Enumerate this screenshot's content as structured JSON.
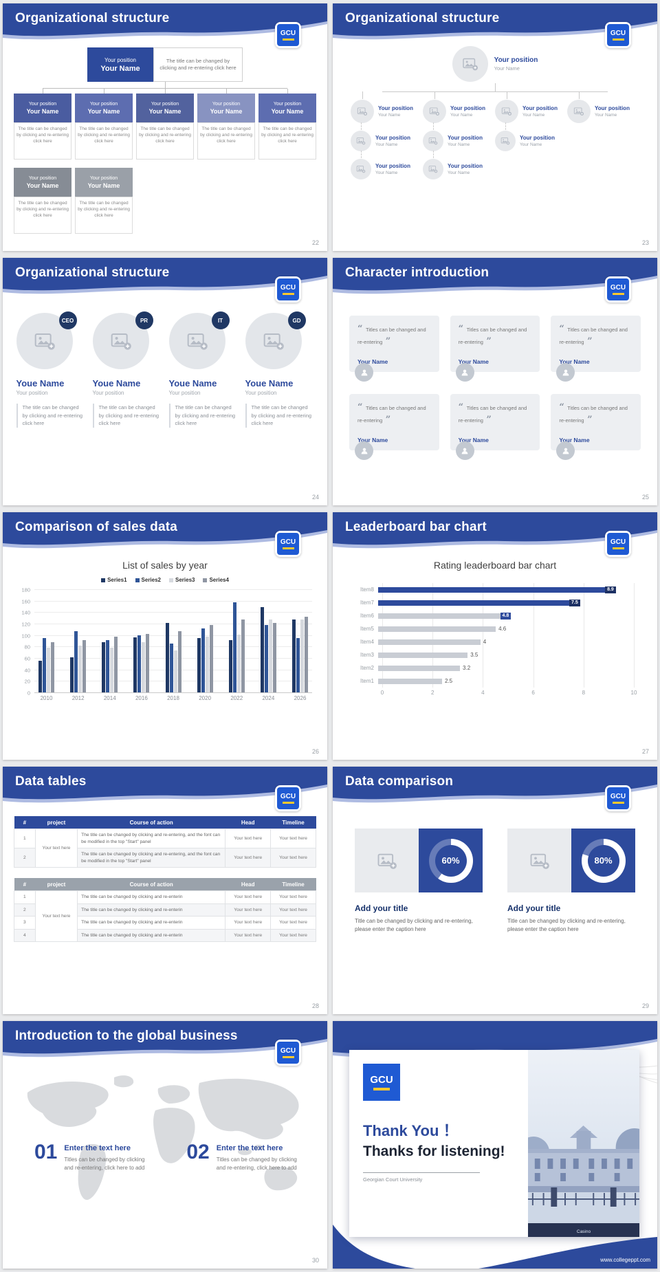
{
  "logo": {
    "text": "GCU",
    "blue": "#1f5ad3",
    "yellow": "#ffc92e"
  },
  "theme": {
    "header_blue": "#2d4a9c",
    "accent_navy": "#203864",
    "muted_gray": "#9aa2ab"
  },
  "slides": {
    "org_boxes": {
      "title": "Organizational structure",
      "page": "22",
      "root": {
        "position": "Your position",
        "name": "Your Name"
      },
      "root_desc": "The title can be changed by clicking and re-entering click here",
      "node": {
        "position": "Your position",
        "name": "Your Name"
      },
      "node_desc": "The title can be changed by clicking and re-entering click here"
    },
    "org_tree": {
      "title": "Organizational structure",
      "page": "23",
      "node": {
        "position": "Your position",
        "name": "Your Name"
      }
    },
    "org_people": {
      "title": "Organizational structure",
      "page": "24",
      "badges": [
        "CEO",
        "PR",
        "IT",
        "GD"
      ],
      "name": "Youe Name",
      "position": "Your position",
      "desc": "The title can be changed by clicking and re-entering click here"
    },
    "characters": {
      "title": "Character introduction",
      "page": "25",
      "quote": "Titles can be changed and re-entering",
      "name": "Your Name"
    },
    "sales": {
      "title": "Comparison of sales data",
      "page": "26"
    },
    "leaderboard": {
      "title": "Leaderboard bar chart",
      "page": "27"
    },
    "tables": {
      "title": "Data tables",
      "page": "28",
      "headers": [
        "#",
        "project",
        "Course of action",
        "Head",
        "Timeline"
      ],
      "project_cell": "Your text here",
      "head_cell": "Your text here",
      "timeline_cell": "Your text here",
      "action_long": "The title can be changed by clicking and re-entering, and the font can be modified in the top \"Start\" panel",
      "action_short": "The title can be changed by clicking and re-enterin",
      "table1_rows": [
        "1",
        "2"
      ],
      "table2_rows": [
        "1",
        "2",
        "3",
        "4"
      ]
    },
    "comparison": {
      "title": "Data comparison",
      "page": "29",
      "items": [
        {
          "percent": 60,
          "percent_label": "60%",
          "title": "Add your title",
          "desc": "Title can be changed by clicking and re-entering, please enter the caption here"
        },
        {
          "percent": 80,
          "percent_label": "80%",
          "title": "Add your title",
          "desc": "Title can be changed by clicking and re-entering, please enter the caption here"
        }
      ]
    },
    "global": {
      "title": "Introduction to the global business",
      "page": "30",
      "items": [
        {
          "num": "01",
          "title": "Enter the text here",
          "desc": "Titles can be changed by clicking and re-entering, click here to add"
        },
        {
          "num": "02",
          "title": "Enter the text here",
          "desc": "Titles can be changed by clicking and re-entering, click here to add"
        }
      ]
    },
    "thanks": {
      "thank_you": "Thank You ！",
      "listening": "Thanks for listening!",
      "university": "Georgian Court University",
      "photo_caption": "Casino",
      "website": "www.collegeppt.com"
    }
  },
  "chart_data": [
    {
      "type": "bar",
      "title": "List of sales by year",
      "categories": [
        "2010",
        "2012",
        "2014",
        "2016",
        "2018",
        "2020",
        "2022",
        "2024",
        "2026"
      ],
      "series": [
        {
          "name": "Series1",
          "color": "#1f3864",
          "values": [
            55,
            62,
            88,
            97,
            122,
            96,
            92,
            150,
            128
          ]
        },
        {
          "name": "Series2",
          "color": "#2f5597",
          "values": [
            95,
            108,
            92,
            100,
            86,
            112,
            158,
            118,
            96
          ]
        },
        {
          "name": "Series3",
          "color": "#d6d9de",
          "values": [
            78,
            82,
            78,
            88,
            74,
            98,
            102,
            128,
            128
          ]
        },
        {
          "name": "Series4",
          "color": "#8f96a3",
          "values": [
            88,
            92,
            98,
            103,
            108,
            118,
            128,
            122,
            133
          ]
        }
      ],
      "ylim": [
        0,
        180
      ],
      "ytick_step": 20,
      "grid": true,
      "legend_position": "top",
      "xlabel": "",
      "ylabel": ""
    },
    {
      "type": "bar",
      "orientation": "horizontal",
      "title": "Rating leaderboard bar chart",
      "categories": [
        "Item8",
        "Item7",
        "Item6",
        "Item5",
        "Item4",
        "Item3",
        "Item2",
        "Item1"
      ],
      "values": [
        8.9,
        7.5,
        4.8,
        4.6,
        4,
        3.5,
        3.2,
        2.5
      ],
      "highlight": [
        true,
        true,
        false,
        false,
        false,
        false,
        false,
        false
      ],
      "value_chip": [
        true,
        true,
        true,
        false,
        false,
        false,
        false,
        false
      ],
      "xlim": [
        0,
        10
      ],
      "xticks": [
        0,
        2,
        4,
        6,
        8,
        10
      ],
      "bar_color": "#2d4a9c",
      "bar_color_muted": "#c9cdd4",
      "chip_color": "#2d4a9c",
      "chip_color_strong": "#1d3164",
      "grid": true
    }
  ]
}
